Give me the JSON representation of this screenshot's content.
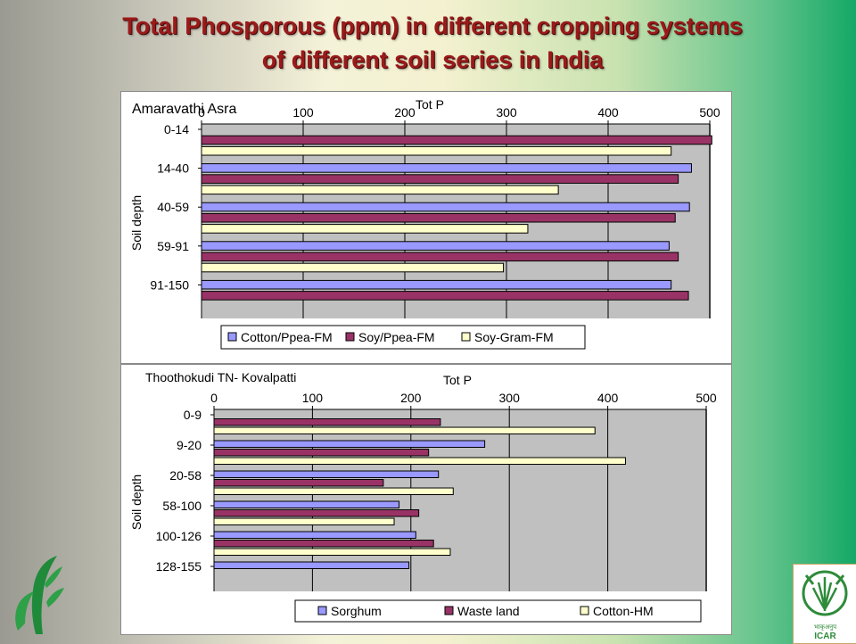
{
  "page": {
    "title_line1": "Total Phosporous (ppm) in different cropping systems",
    "title_line2": "of different  soil series in India",
    "logo_right_text": "ICAR",
    "logo_right_hindi": "भाकृअनुप"
  },
  "colors": {
    "title": "#9a1a1a",
    "plot_bg": "#c0c0c0",
    "series_blue": "#9999ff",
    "series_maroon": "#993366",
    "series_cream": "#ffffcc"
  },
  "chart_data": [
    {
      "type": "bar",
      "orientation": "horizontal",
      "title": "Amaravathi Asra",
      "subtitle": "Tot P",
      "ylabel": "Soil depth",
      "xlim": [
        0,
        500
      ],
      "xticks": [
        0,
        100,
        200,
        300,
        400,
        500
      ],
      "categories": [
        "0-14",
        "14-40",
        "40-59",
        "59-91",
        "91-150"
      ],
      "series": [
        {
          "name": "Cotton/Ppea-FM",
          "color": "#9999ff",
          "values": [
            null,
            482,
            480,
            460,
            462
          ]
        },
        {
          "name": "Soy/Ppea-FM",
          "color": "#993366",
          "values": [
            502,
            469,
            466,
            469,
            479
          ]
        },
        {
          "name": "Soy-Gram-FM",
          "color": "#ffffcc",
          "values": [
            462,
            351,
            321,
            297,
            null
          ]
        }
      ],
      "legend": "bottom",
      "grid": true
    },
    {
      "type": "bar",
      "orientation": "horizontal",
      "title": "Thoothokudi TN- Kovalpatti",
      "subtitle": "Tot P",
      "ylabel": "Soil depth",
      "xlim": [
        0,
        500
      ],
      "xticks": [
        0,
        100,
        200,
        300,
        400,
        500
      ],
      "categories": [
        "0-9",
        "9-20",
        "20-58",
        "58-100",
        "100-126",
        "128-155"
      ],
      "series": [
        {
          "name": "Sorghum",
          "color": "#9999ff",
          "values": [
            null,
            275,
            228,
            188,
            205,
            198
          ]
        },
        {
          "name": "Waste land",
          "color": "#993366",
          "values": [
            230,
            218,
            172,
            208,
            223,
            null
          ]
        },
        {
          "name": "Cotton-HM",
          "color": "#ffffcc",
          "values": [
            387,
            418,
            243,
            183,
            240,
            null
          ]
        }
      ],
      "legend": "bottom",
      "grid": true
    }
  ]
}
